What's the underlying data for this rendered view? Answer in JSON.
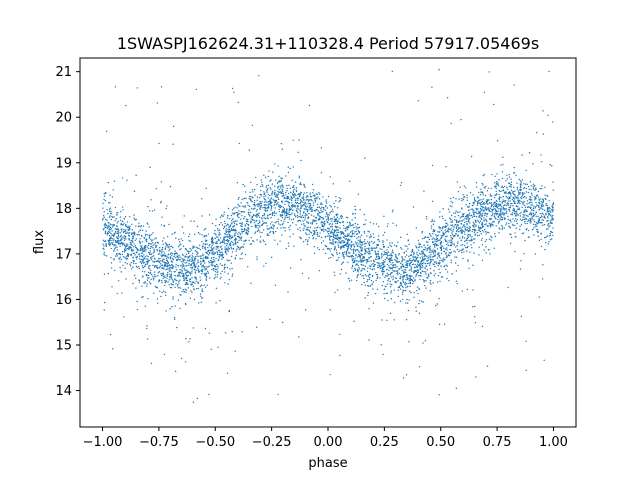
{
  "chart_data": {
    "type": "scatter",
    "title": "1SWASPJ162624.31+110328.4 Period 57917.05469s",
    "xlabel": "phase",
    "ylabel": "flux",
    "xlim": [
      -1.1,
      1.1
    ],
    "ylim": [
      13.2,
      21.3
    ],
    "x_ticks": [
      -1.0,
      -0.75,
      -0.5,
      -0.25,
      0.0,
      0.25,
      0.5,
      0.75,
      1.0
    ],
    "x_tick_labels": [
      "−1.00",
      "−0.75",
      "−0.50",
      "−0.25",
      "0.00",
      "0.25",
      "0.50",
      "0.75",
      "1.00"
    ],
    "y_ticks": [
      14,
      15,
      16,
      17,
      18,
      19,
      20,
      21
    ],
    "y_tick_labels": [
      "14",
      "15",
      "16",
      "17",
      "18",
      "19",
      "20",
      "21"
    ],
    "grid": false,
    "marker_color": "#1f77b4",
    "series": [
      {
        "x": [
          -1.0,
          -0.9,
          -0.8,
          -0.7,
          -0.65,
          -0.6,
          -0.5,
          -0.4,
          -0.3,
          -0.2,
          -0.15,
          -0.1,
          0.0,
          0.1,
          0.2,
          0.3,
          0.35,
          0.4,
          0.5,
          0.6,
          0.7,
          0.8,
          0.85,
          0.9,
          1.0
        ],
        "y": [
          17.6,
          17.3,
          16.95,
          16.7,
          16.65,
          16.7,
          17.0,
          17.5,
          17.95,
          18.15,
          18.1,
          17.95,
          17.6,
          17.2,
          16.85,
          16.65,
          16.65,
          16.75,
          17.15,
          17.6,
          17.95,
          18.15,
          18.1,
          18.0,
          17.8
        ]
      }
    ]
  }
}
